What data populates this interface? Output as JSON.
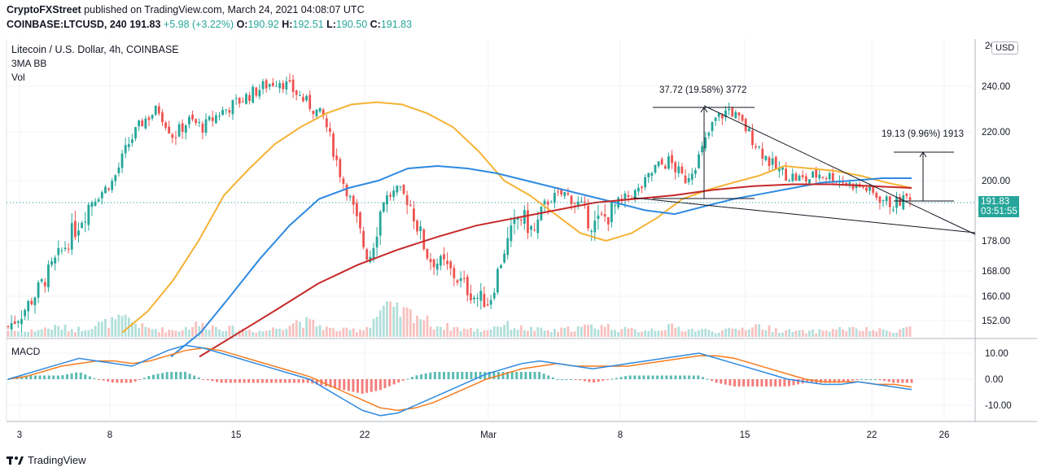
{
  "header": {
    "publisher": "CryptoFXStreet",
    "published_text": "published on TradingView.com, March 24, 2021 04:08:07 UTC",
    "symbol_line_prefix": "COINBASE:LTCUSD, 240",
    "last_price": "191.83",
    "change": "+5.98 (+3.22%)",
    "o_label": "O:",
    "o_val": "190.92",
    "h_label": "H:",
    "h_val": "192.51",
    "l_label": "L:",
    "l_val": "190.50",
    "c_label": "C:",
    "c_val": "191.83"
  },
  "legend": {
    "title": "Litecoin / U.S. Dollar, 4h, COINBASE",
    "ind1": "3MA BB",
    "ind2": "Vol",
    "macd": "MACD"
  },
  "price_badge": {
    "price": "191.83",
    "countdown": "03:51:55"
  },
  "currency_button": "USD",
  "footer": {
    "brand": "TradingView"
  },
  "colors": {
    "up": "#26a69a",
    "down": "#ef5350",
    "ma_fast": "#f5b335",
    "ma_mid": "#2f8ae0",
    "ma_slow": "#c62828",
    "macd": "#2f8ae0",
    "signal": "#f57c1f",
    "grid": "#f0f3fa"
  },
  "chart_data": {
    "type": "candlestick",
    "price_axis": {
      "ticks": [
        152.0,
        160.0,
        168.0,
        178.0,
        188.0,
        200.0,
        220.0,
        240.0
      ],
      "labels": [
        "152.00",
        "160.00",
        "168.00",
        "178.00",
        "188.00",
        "200.00",
        "220.00",
        "240.00"
      ],
      "top_partial_label": "2€"
    },
    "macd_axis": {
      "ticks": [
        10.0,
        0.0,
        -10.0
      ],
      "labels": [
        "10.00",
        "0.00",
        "-10.00"
      ]
    },
    "x_axis": {
      "labels": [
        "3",
        "8",
        "15",
        "22",
        "Mar",
        "8",
        "15",
        "22",
        "26"
      ]
    },
    "annotations": [
      {
        "text": "37.72 (19.58%) 3772"
      },
      {
        "text": "19.13 (9.96%) 1913"
      }
    ],
    "series_approx_close": [
      150,
      155,
      162,
      170,
      178,
      185,
      192,
      200,
      215,
      225,
      230,
      218,
      225,
      222,
      228,
      232,
      236,
      240,
      243,
      238,
      232,
      226,
      205,
      185,
      172,
      190,
      195,
      185,
      172,
      170,
      165,
      160,
      158,
      175,
      185,
      180,
      190,
      193,
      187,
      182,
      185,
      190,
      195,
      205,
      208,
      200,
      210,
      225,
      230,
      222,
      213,
      205,
      202,
      200,
      203,
      201,
      198,
      196,
      190,
      188,
      191.83
    ],
    "ma_fast_approx": [
      148,
      155,
      165,
      178,
      192,
      205,
      215,
      222,
      228,
      232,
      233,
      232,
      228,
      222,
      212,
      200,
      192,
      185,
      180,
      178,
      180,
      184,
      190,
      195,
      199,
      202,
      206,
      205,
      204,
      202,
      199,
      196
    ],
    "ma_mid_approx": [
      140,
      148,
      160,
      172,
      182,
      190,
      196,
      200,
      205,
      206,
      205,
      203,
      200,
      196,
      192,
      188,
      186,
      185,
      187,
      190,
      193,
      196,
      199,
      200,
      201,
      201
    ],
    "ma_slow_approx": [
      140,
      148,
      156,
      164,
      170,
      175,
      179,
      182,
      184,
      186,
      188,
      190,
      192,
      195,
      197,
      198,
      198,
      197,
      196
    ],
    "volume_approx": [
      8,
      6,
      10,
      12,
      9,
      14,
      18,
      22,
      11,
      9,
      8,
      15,
      13,
      10,
      9,
      7,
      12,
      20,
      16,
      9,
      8,
      10,
      35,
      30,
      28,
      14,
      12,
      9,
      8,
      16,
      11,
      9,
      7,
      10,
      12,
      14,
      9,
      8,
      10,
      12,
      9,
      8,
      7,
      10,
      14,
      9,
      7,
      6,
      8,
      10,
      9,
      8,
      7,
      12
    ],
    "macd_approx": [
      0,
      2,
      4,
      6,
      8,
      7,
      6,
      5,
      8,
      11,
      13,
      12,
      10,
      8,
      6,
      4,
      2,
      0,
      -4,
      -8,
      -12,
      -14,
      -13,
      -10,
      -7,
      -4,
      -1,
      2,
      4,
      6,
      7,
      6,
      5,
      4,
      5,
      6,
      7,
      8,
      9,
      10,
      8,
      6,
      4,
      2,
      0,
      -1,
      -2,
      -2,
      -1,
      -2,
      -3,
      -4
    ],
    "signal_approx": [
      0,
      1,
      3,
      5,
      6,
      7,
      7,
      6,
      7,
      9,
      11,
      12,
      11,
      9,
      7,
      5,
      3,
      1,
      -2,
      -5,
      -8,
      -11,
      -12,
      -11,
      -9,
      -6,
      -3,
      0,
      2,
      4,
      5,
      6,
      5,
      5,
      5,
      5,
      6,
      7,
      8,
      9,
      9,
      8,
      6,
      4,
      2,
      0,
      -1,
      -1,
      -1,
      -2,
      -2,
      -3
    ]
  }
}
